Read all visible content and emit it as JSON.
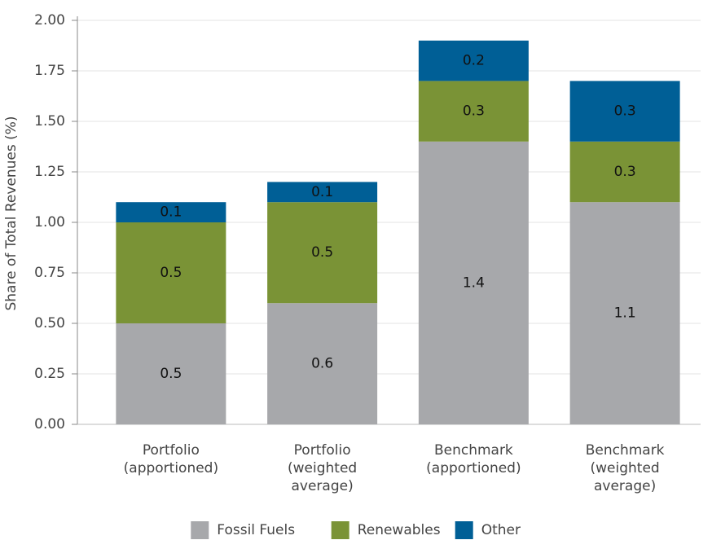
{
  "chart_data": {
    "type": "stacked_bar",
    "ylabel": "Share of Total Revenues (%)",
    "categories": [
      "Portfolio\n(apportioned)",
      "Portfolio\n(weighted\naverage)",
      "Benchmark\n(apportioned)",
      "Benchmark\n(weighted\naverage)"
    ],
    "series": [
      {
        "name": "Fossil Fuels",
        "color": "#a7a8ab",
        "values": [
          0.5,
          0.6,
          1.4,
          1.1
        ]
      },
      {
        "name": "Renewables",
        "color": "#7a9336",
        "values": [
          0.5,
          0.5,
          0.3,
          0.3
        ]
      },
      {
        "name": "Other",
        "color": "#005f96",
        "values": [
          0.1,
          0.1,
          0.2,
          0.3
        ]
      }
    ],
    "ylim": [
      0,
      2
    ],
    "yticks": [
      {
        "value": 0,
        "label": "0.00"
      },
      0.25,
      {
        "value": 0.5,
        "label": "0.50"
      },
      0.75,
      {
        "value": 1,
        "label": "1.00"
      },
      1.25,
      {
        "value": 1.5,
        "label": "1.50"
      },
      1.75,
      {
        "value": 2,
        "label": "2.00"
      }
    ],
    "grid": true,
    "legend": "bottom"
  }
}
